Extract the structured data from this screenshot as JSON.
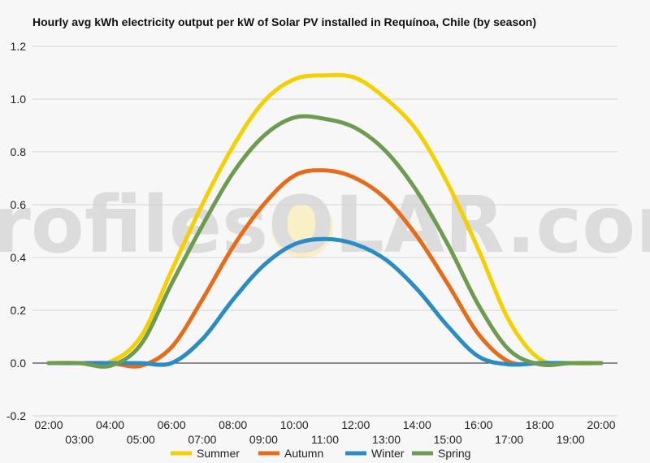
{
  "chart_data": {
    "type": "line",
    "title": "Hourly avg kWh electricity output per kW of Solar PV installed in Requínoa, Chile (by season)",
    "xlabel": "",
    "ylabel": "",
    "ylim": [
      -0.2,
      1.2
    ],
    "yticks": [
      "-0.2",
      "0.0",
      "0.2",
      "0.4",
      "0.6",
      "0.8",
      "1.0",
      "1.2"
    ],
    "xticks_top": [
      "02:00",
      "04:00",
      "06:00",
      "08:00",
      "10:00",
      "12:00",
      "14:00",
      "16:00",
      "18:00",
      "20:00"
    ],
    "xticks_bottom": [
      "03:00",
      "05:00",
      "07:00",
      "09:00",
      "11:00",
      "13:00",
      "15:00",
      "17:00",
      "19:00"
    ],
    "x": [
      "02:00",
      "03:00",
      "04:00",
      "05:00",
      "06:00",
      "07:00",
      "08:00",
      "09:00",
      "10:00",
      "11:00",
      "12:00",
      "13:00",
      "14:00",
      "15:00",
      "16:00",
      "17:00",
      "18:00",
      "19:00",
      "20:00"
    ],
    "grid": "horizontal",
    "legend_position": "bottom",
    "watermark": "profilesOLAR.com",
    "series": [
      {
        "name": "Summer",
        "color": "#f5d000",
        "values": [
          0,
          0,
          0.005,
          0.1,
          0.35,
          0.6,
          0.82,
          0.99,
          1.075,
          1.09,
          1.08,
          1.0,
          0.88,
          0.68,
          0.43,
          0.16,
          0.015,
          0,
          0
        ]
      },
      {
        "name": "Autumn",
        "color": "#e56c1b",
        "values": [
          0,
          0,
          0,
          -0.01,
          0.06,
          0.24,
          0.44,
          0.6,
          0.71,
          0.73,
          0.7,
          0.62,
          0.48,
          0.3,
          0.11,
          0.005,
          0,
          0,
          0
        ]
      },
      {
        "name": "Winter",
        "color": "#2b8cc4",
        "values": [
          0,
          0,
          0,
          0,
          0,
          0.09,
          0.24,
          0.37,
          0.45,
          0.47,
          0.45,
          0.39,
          0.28,
          0.14,
          0.025,
          -0.005,
          0,
          0,
          0
        ]
      },
      {
        "name": "Spring",
        "color": "#6e9b52",
        "values": [
          0,
          0,
          -0.01,
          0.07,
          0.3,
          0.52,
          0.72,
          0.86,
          0.93,
          0.925,
          0.89,
          0.8,
          0.65,
          0.45,
          0.22,
          0.05,
          -0.005,
          0,
          0
        ]
      }
    ]
  }
}
